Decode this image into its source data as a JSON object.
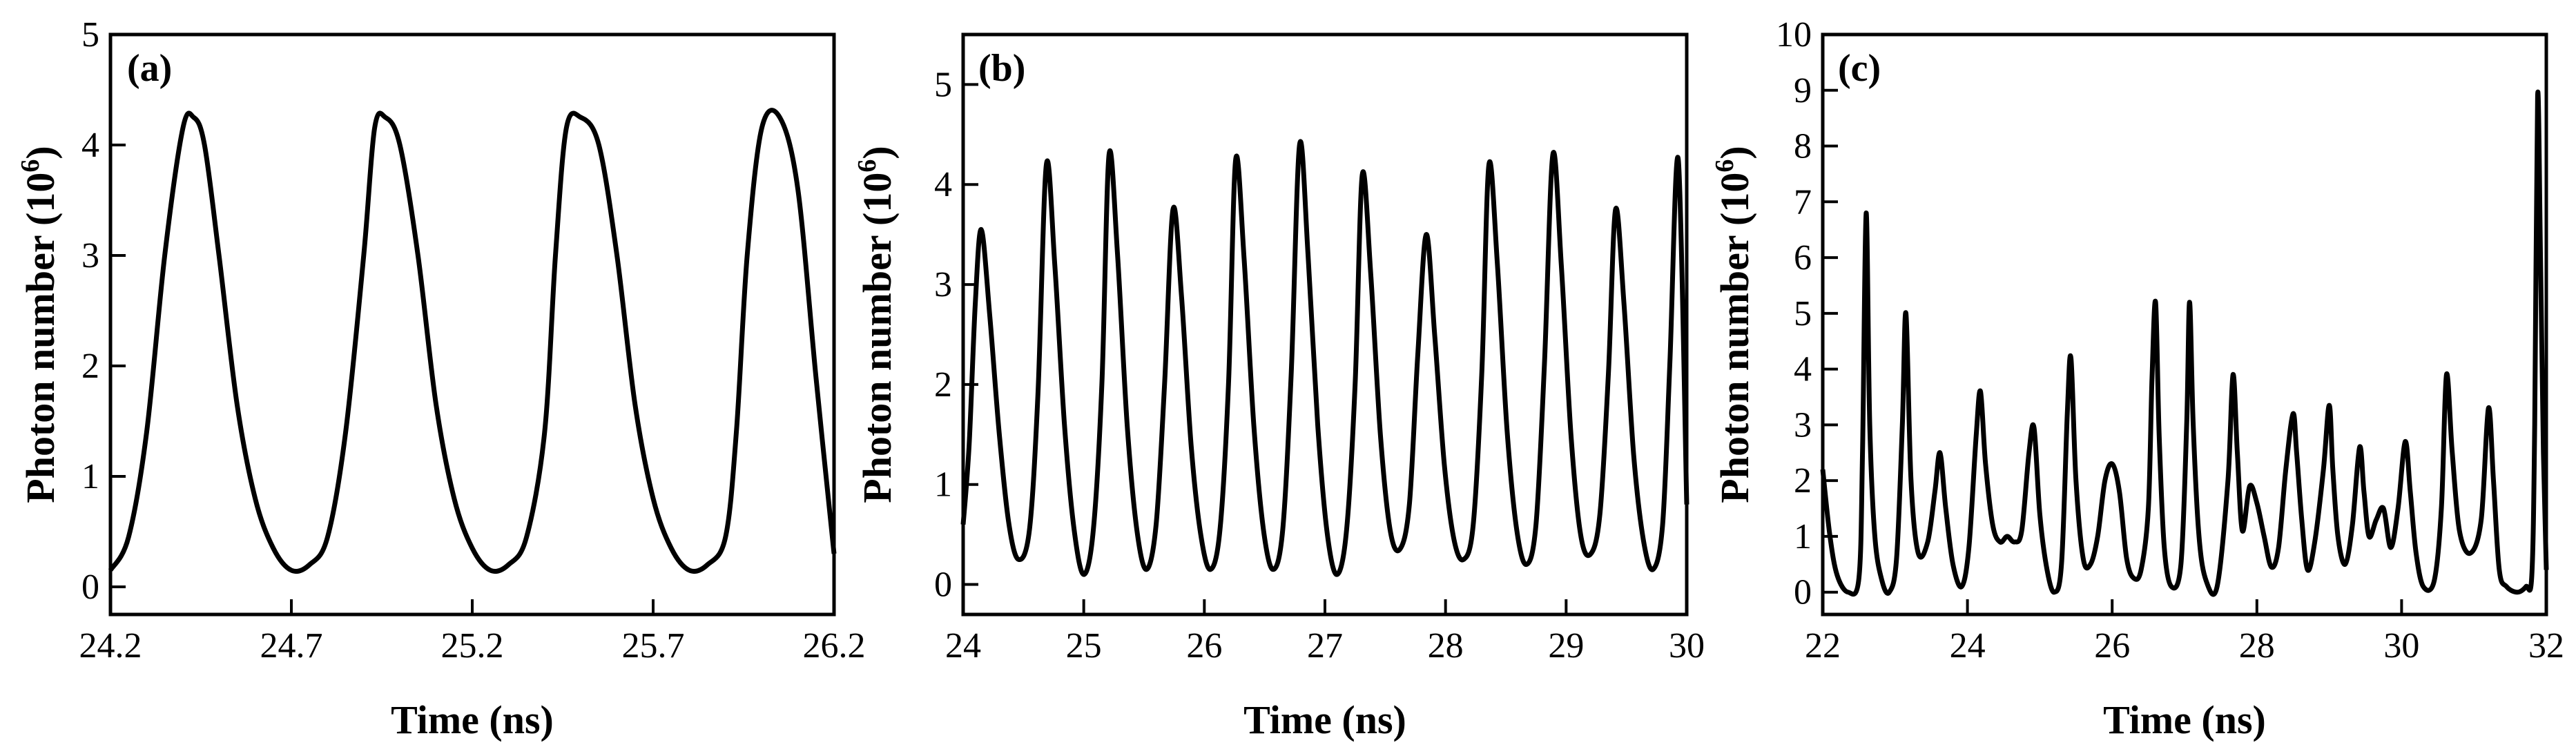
{
  "colors": {
    "line": "#000000",
    "background": "#ffffff"
  },
  "chart_data": [
    {
      "type": "line",
      "panel_label": "(a)",
      "xlabel": "Time (ns)",
      "ylabel_main": "Photon number (10",
      "ylabel_exp": "6",
      "ylabel_close": ")",
      "xlim": [
        24.2,
        26.2
      ],
      "ylim": [
        -0.25,
        5.0
      ],
      "x_ticks": [
        24.2,
        24.7,
        25.2,
        25.7,
        26.2
      ],
      "x_tick_labels": [
        "24.2",
        "24.7",
        "25.2",
        "25.7",
        "26.2"
      ],
      "y_ticks": [
        0,
        1,
        2,
        3,
        4,
        5
      ],
      "y_tick_labels": [
        "0",
        "1",
        "2",
        "3",
        "4",
        "5"
      ],
      "series": [
        {
          "name": "photon number",
          "x": [
            24.2,
            24.25,
            24.3,
            24.35,
            24.4,
            24.43,
            24.46,
            24.5,
            24.55,
            24.6,
            24.65,
            24.7,
            24.75,
            24.8,
            24.85,
            24.9,
            24.93,
            24.96,
            25.0,
            25.05,
            25.1,
            25.15,
            25.2,
            25.25,
            25.3,
            25.35,
            25.4,
            25.43,
            25.46,
            25.5,
            25.55,
            25.6,
            25.65,
            25.7,
            25.75,
            25.8,
            25.85,
            25.9,
            25.93,
            25.96,
            26.0,
            26.05,
            26.1,
            26.15,
            26.2
          ],
          "y": [
            0.15,
            0.45,
            1.4,
            3.0,
            4.15,
            4.25,
            4.0,
            3.0,
            1.65,
            0.8,
            0.35,
            0.15,
            0.2,
            0.45,
            1.4,
            3.0,
            4.15,
            4.25,
            4.0,
            3.0,
            1.65,
            0.8,
            0.35,
            0.15,
            0.2,
            0.45,
            1.4,
            3.0,
            4.15,
            4.25,
            4.0,
            3.0,
            1.65,
            0.8,
            0.35,
            0.15,
            0.2,
            0.45,
            1.4,
            3.0,
            4.15,
            4.25,
            3.6,
            1.9,
            0.3
          ]
        }
      ]
    },
    {
      "type": "line",
      "panel_label": "(b)",
      "xlabel": "Time (ns)",
      "ylabel_main": "Photon number (10",
      "ylabel_exp": "6",
      "ylabel_close": ")",
      "xlim": [
        24,
        30
      ],
      "ylim": [
        -0.3,
        5.5
      ],
      "x_ticks": [
        24,
        25,
        26,
        27,
        28,
        29,
        30
      ],
      "x_tick_labels": [
        "24",
        "25",
        "26",
        "27",
        "28",
        "29",
        "30"
      ],
      "y_ticks": [
        0,
        1,
        2,
        3,
        4,
        5
      ],
      "y_tick_labels": [
        "0",
        "1",
        "2",
        "3",
        "4",
        "5"
      ],
      "series": [
        {
          "name": "photon number",
          "x": [
            24.0,
            24.05,
            24.1,
            24.15,
            24.22,
            24.3,
            24.38,
            24.46,
            24.55,
            24.62,
            24.69,
            24.76,
            24.84,
            24.92,
            25.0,
            25.08,
            25.15,
            25.21,
            25.28,
            25.36,
            25.44,
            25.52,
            25.6,
            25.67,
            25.74,
            25.81,
            25.89,
            25.97,
            26.05,
            26.13,
            26.2,
            26.26,
            26.33,
            26.41,
            26.49,
            26.57,
            26.65,
            26.72,
            26.79,
            26.86,
            26.94,
            27.02,
            27.1,
            27.18,
            27.25,
            27.31,
            27.38,
            27.46,
            27.54,
            27.62,
            27.7,
            27.77,
            27.84,
            27.91,
            27.99,
            28.07,
            28.15,
            28.23,
            28.3,
            28.36,
            28.43,
            28.51,
            28.59,
            28.67,
            28.75,
            28.82,
            28.89,
            28.96,
            29.04,
            29.12,
            29.2,
            29.28,
            29.35,
            29.41,
            29.48,
            29.56,
            29.64,
            29.72,
            29.8,
            29.86,
            29.93,
            30.0
          ],
          "y": [
            0.6,
            1.4,
            2.8,
            3.55,
            2.7,
            1.5,
            0.6,
            0.25,
            0.55,
            1.9,
            4.2,
            3.2,
            1.6,
            0.55,
            0.1,
            0.55,
            2.0,
            4.3,
            3.3,
            1.6,
            0.55,
            0.15,
            0.6,
            2.0,
            3.75,
            2.9,
            1.4,
            0.5,
            0.15,
            0.55,
            2.0,
            4.25,
            3.25,
            1.6,
            0.55,
            0.15,
            0.55,
            2.1,
            4.4,
            3.3,
            1.6,
            0.5,
            0.1,
            0.55,
            2.0,
            4.1,
            3.1,
            1.5,
            0.55,
            0.35,
            0.8,
            2.3,
            3.5,
            2.5,
            1.2,
            0.45,
            0.25,
            0.6,
            2.1,
            4.2,
            3.2,
            1.55,
            0.55,
            0.2,
            0.6,
            2.2,
            4.3,
            3.2,
            1.5,
            0.5,
            0.3,
            0.7,
            2.1,
            3.75,
            2.8,
            1.3,
            0.45,
            0.15,
            0.6,
            2.2,
            4.25,
            0.8
          ]
        }
      ]
    },
    {
      "type": "line",
      "panel_label": "(c)",
      "xlabel": "Time (ns)",
      "ylabel_main": "Photon number (10",
      "ylabel_exp": "6",
      "ylabel_close": ")",
      "xlim": [
        22,
        32
      ],
      "ylim": [
        -0.4,
        10
      ],
      "x_ticks": [
        22,
        24,
        26,
        28,
        30,
        32
      ],
      "x_tick_labels": [
        "22",
        "24",
        "26",
        "28",
        "30",
        "32"
      ],
      "y_ticks": [
        0,
        1,
        2,
        3,
        4,
        5,
        6,
        7,
        8,
        9,
        10
      ],
      "y_tick_labels": [
        "0",
        "1",
        "2",
        "3",
        "4",
        "5",
        "6",
        "7",
        "8",
        "9",
        "10"
      ],
      "series": [
        {
          "name": "photon number",
          "x": [
            22.0,
            22.1,
            22.2,
            22.35,
            22.5,
            22.55,
            22.6,
            22.65,
            22.72,
            22.82,
            22.92,
            23.02,
            23.1,
            23.15,
            23.22,
            23.32,
            23.45,
            23.55,
            23.62,
            23.7,
            23.8,
            23.92,
            24.02,
            24.12,
            24.18,
            24.25,
            24.35,
            24.45,
            24.55,
            24.65,
            24.75,
            24.85,
            24.92,
            25.0,
            25.1,
            25.2,
            25.3,
            25.38,
            25.43,
            25.5,
            25.6,
            25.7,
            25.8,
            25.9,
            26.0,
            26.1,
            26.2,
            26.3,
            26.4,
            26.5,
            26.55,
            26.6,
            26.65,
            26.72,
            26.82,
            26.95,
            27.03,
            27.07,
            27.12,
            27.2,
            27.3,
            27.45,
            27.6,
            27.67,
            27.73,
            27.8,
            27.9,
            28.0,
            28.1,
            28.2,
            28.3,
            28.4,
            28.5,
            28.55,
            28.62,
            28.7,
            28.8,
            28.92,
            29.0,
            29.05,
            29.12,
            29.22,
            29.32,
            29.42,
            29.48,
            29.55,
            29.65,
            29.75,
            29.85,
            29.95,
            30.05,
            30.12,
            30.2,
            30.3,
            30.45,
            30.55,
            30.62,
            30.7,
            30.8,
            30.95,
            31.1,
            31.2,
            31.27,
            31.35,
            31.45,
            31.6,
            31.72,
            31.8,
            31.84,
            31.88,
            31.92,
            31.96,
            32.0
          ],
          "y": [
            2.2,
            1.0,
            0.3,
            0.0,
            0.25,
            2.5,
            6.8,
            3.0,
            1.0,
            0.2,
            0.0,
            0.6,
            3.0,
            5.0,
            2.0,
            0.7,
            0.9,
            1.8,
            2.5,
            1.5,
            0.5,
            0.1,
            0.8,
            2.8,
            3.6,
            2.3,
            1.2,
            0.9,
            1.0,
            0.9,
            1.1,
            2.5,
            2.95,
            1.4,
            0.4,
            0.0,
            0.5,
            3.2,
            4.2,
            2.0,
            0.6,
            0.5,
            1.0,
            2.0,
            2.3,
            1.8,
            0.6,
            0.25,
            0.4,
            1.5,
            3.8,
            5.2,
            2.8,
            0.8,
            0.1,
            0.5,
            3.0,
            5.2,
            3.0,
            1.0,
            0.2,
            0.1,
            2.0,
            3.9,
            2.5,
            1.1,
            1.9,
            1.6,
            1.0,
            0.45,
            0.8,
            2.2,
            3.2,
            2.5,
            1.3,
            0.4,
            0.9,
            2.2,
            3.35,
            2.2,
            1.0,
            0.5,
            1.2,
            2.6,
            1.8,
            1.0,
            1.3,
            1.5,
            0.8,
            1.5,
            2.7,
            1.8,
            0.7,
            0.1,
            0.2,
            1.5,
            3.9,
            2.5,
            1.1,
            0.7,
            1.3,
            3.3,
            2.0,
            0.4,
            0.1,
            0.0,
            0.1,
            0.3,
            3.0,
            8.9,
            6.0,
            2.5,
            0.4
          ]
        }
      ]
    }
  ]
}
